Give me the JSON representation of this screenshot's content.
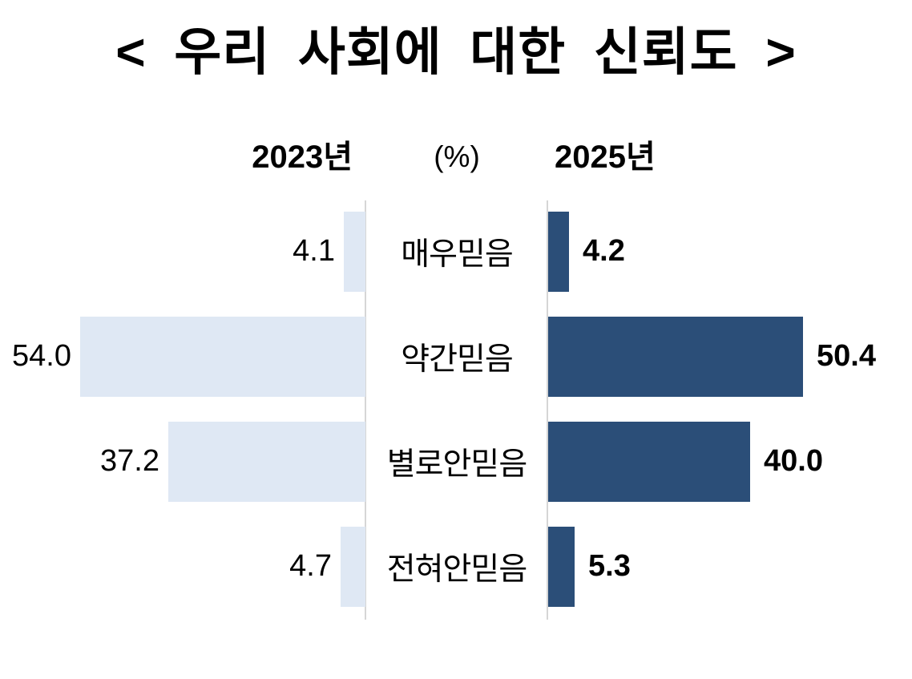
{
  "title": "< 우리 사회에 대한 신뢰도 >",
  "headers": {
    "left": "2023년",
    "unit": "(%)",
    "right": "2025년"
  },
  "rows": [
    {
      "category": "매우믿음",
      "left_value": "4.1",
      "right_value": "4.2"
    },
    {
      "category": "약간믿음",
      "left_value": "54.0",
      "right_value": "50.4"
    },
    {
      "category": "별로안믿음",
      "left_value": "37.2",
      "right_value": "40.0"
    },
    {
      "category": "전혀안믿음",
      "left_value": "4.7",
      "right_value": "5.3"
    }
  ],
  "chart_data": {
    "type": "bar",
    "variant": "diverging-horizontal-butterfly",
    "title": "< 우리 사회에 대한 신뢰도 >",
    "unit": "(%)",
    "categories": [
      "매우믿음",
      "약간믿음",
      "별로안믿음",
      "전혀안믿음"
    ],
    "series": [
      {
        "name": "2023년",
        "values": [
          4.1,
          54.0,
          37.2,
          4.7
        ],
        "color": "#dfe8f4",
        "direction": "left"
      },
      {
        "name": "2025년",
        "values": [
          4.2,
          50.4,
          40.0,
          5.3
        ],
        "color": "#2b4e78",
        "direction": "right"
      }
    ],
    "xlim": [
      0,
      56
    ],
    "grid": false,
    "value_labels": true,
    "legend_position": "top",
    "axis_line_color": "#d6d6d6",
    "text_color": "#000000",
    "background_color": "#ffffff"
  }
}
